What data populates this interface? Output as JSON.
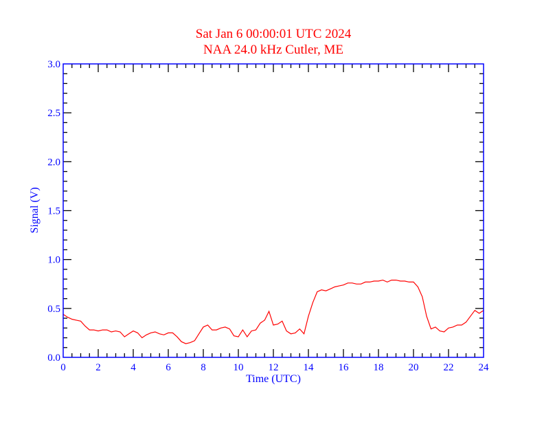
{
  "chart_data": {
    "type": "line",
    "title": "Sat Jan 6 00:00:01 UTC 2024",
    "subtitle": "NAA 24.0 kHz Cutler, ME",
    "xlabel": "Time (UTC)",
    "ylabel": "Signal (V)",
    "xlim": [
      0,
      24
    ],
    "ylim": [
      0,
      3.0
    ],
    "xticks": [
      "0",
      "2",
      "4",
      "6",
      "8",
      "10",
      "12",
      "14",
      "16",
      "18",
      "20",
      "22",
      "24"
    ],
    "yticks": [
      "0.0",
      "0.5",
      "1.0",
      "1.5",
      "2.0",
      "2.5",
      "3.0"
    ],
    "grid": false,
    "colors": {
      "title": "#ff0000",
      "axis": "#0000ff",
      "ticks": "#000000",
      "series": "#ff0000"
    },
    "series": [
      {
        "name": "Signal",
        "x": [
          0,
          0.25,
          0.5,
          0.75,
          1,
          1.25,
          1.5,
          1.75,
          2,
          2.25,
          2.5,
          2.75,
          3,
          3.25,
          3.5,
          3.75,
          4,
          4.25,
          4.5,
          4.75,
          5,
          5.25,
          5.5,
          5.75,
          6,
          6.25,
          6.5,
          6.75,
          7,
          7.25,
          7.5,
          7.75,
          8,
          8.25,
          8.5,
          8.75,
          9,
          9.25,
          9.5,
          9.75,
          10,
          10.25,
          10.5,
          10.75,
          11,
          11.25,
          11.5,
          11.75,
          12,
          12.25,
          12.5,
          12.75,
          13,
          13.25,
          13.5,
          13.75,
          14,
          14.25,
          14.5,
          14.75,
          15,
          15.25,
          15.5,
          15.75,
          16,
          16.25,
          16.5,
          16.75,
          17,
          17.25,
          17.5,
          17.75,
          18,
          18.25,
          18.5,
          18.75,
          19,
          19.25,
          19.5,
          19.75,
          20,
          20.25,
          20.5,
          20.75,
          21,
          21.25,
          21.5,
          21.75,
          22,
          22.25,
          22.5,
          22.75,
          23,
          23.25,
          23.5,
          23.75,
          24
        ],
        "y": [
          0.44,
          0.41,
          0.39,
          0.38,
          0.37,
          0.32,
          0.28,
          0.28,
          0.27,
          0.28,
          0.28,
          0.26,
          0.27,
          0.26,
          0.21,
          0.24,
          0.27,
          0.25,
          0.2,
          0.23,
          0.25,
          0.26,
          0.24,
          0.23,
          0.25,
          0.25,
          0.21,
          0.16,
          0.14,
          0.15,
          0.17,
          0.24,
          0.31,
          0.33,
          0.28,
          0.28,
          0.3,
          0.31,
          0.29,
          0.22,
          0.21,
          0.28,
          0.21,
          0.27,
          0.28,
          0.35,
          0.38,
          0.47,
          0.33,
          0.34,
          0.37,
          0.27,
          0.24,
          0.25,
          0.29,
          0.24,
          0.42,
          0.56,
          0.67,
          0.69,
          0.68,
          0.7,
          0.72,
          0.73,
          0.74,
          0.76,
          0.76,
          0.75,
          0.75,
          0.77,
          0.77,
          0.78,
          0.78,
          0.79,
          0.77,
          0.79,
          0.79,
          0.78,
          0.78,
          0.77,
          0.77,
          0.72,
          0.62,
          0.42,
          0.29,
          0.31,
          0.27,
          0.26,
          0.3,
          0.31,
          0.33,
          0.33,
          0.36,
          0.42,
          0.48,
          0.45,
          0.48
        ]
      }
    ]
  }
}
